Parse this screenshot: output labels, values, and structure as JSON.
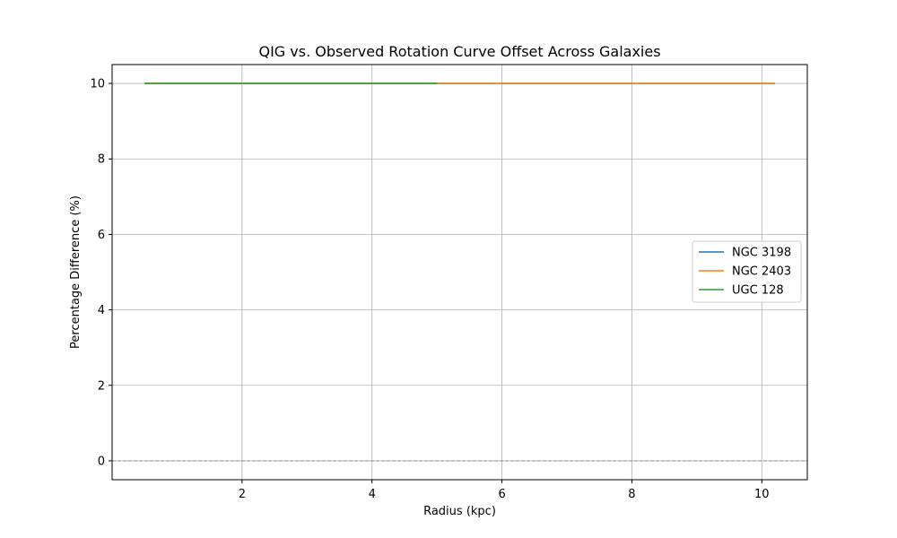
{
  "chart_data": {
    "type": "line",
    "title": "QIG vs. Observed Rotation Curve Offset Across Galaxies",
    "xlabel": "Radius (kpc)",
    "ylabel": "Percentage Difference (%)",
    "xlim": [
      0.0,
      10.7
    ],
    "ylim": [
      -0.5,
      10.5
    ],
    "xticks": [
      2,
      4,
      6,
      8,
      10
    ],
    "yticks": [
      0,
      2,
      4,
      6,
      8,
      10
    ],
    "grid": true,
    "legend_position": "center-right",
    "reference_line": {
      "y": 0,
      "style": "dashed",
      "color": "#888888"
    },
    "series": [
      {
        "name": "NGC 3198",
        "color": "#1f77b4",
        "x": [
          0.5,
          10.2
        ],
        "y": [
          10,
          10
        ]
      },
      {
        "name": "NGC 2403",
        "color": "#ff7f0e",
        "x": [
          0.5,
          10.2
        ],
        "y": [
          10,
          10
        ]
      },
      {
        "name": "UGC 128",
        "color": "#2ca02c",
        "x": [
          0.5,
          5.0
        ],
        "y": [
          10,
          10
        ]
      }
    ]
  }
}
